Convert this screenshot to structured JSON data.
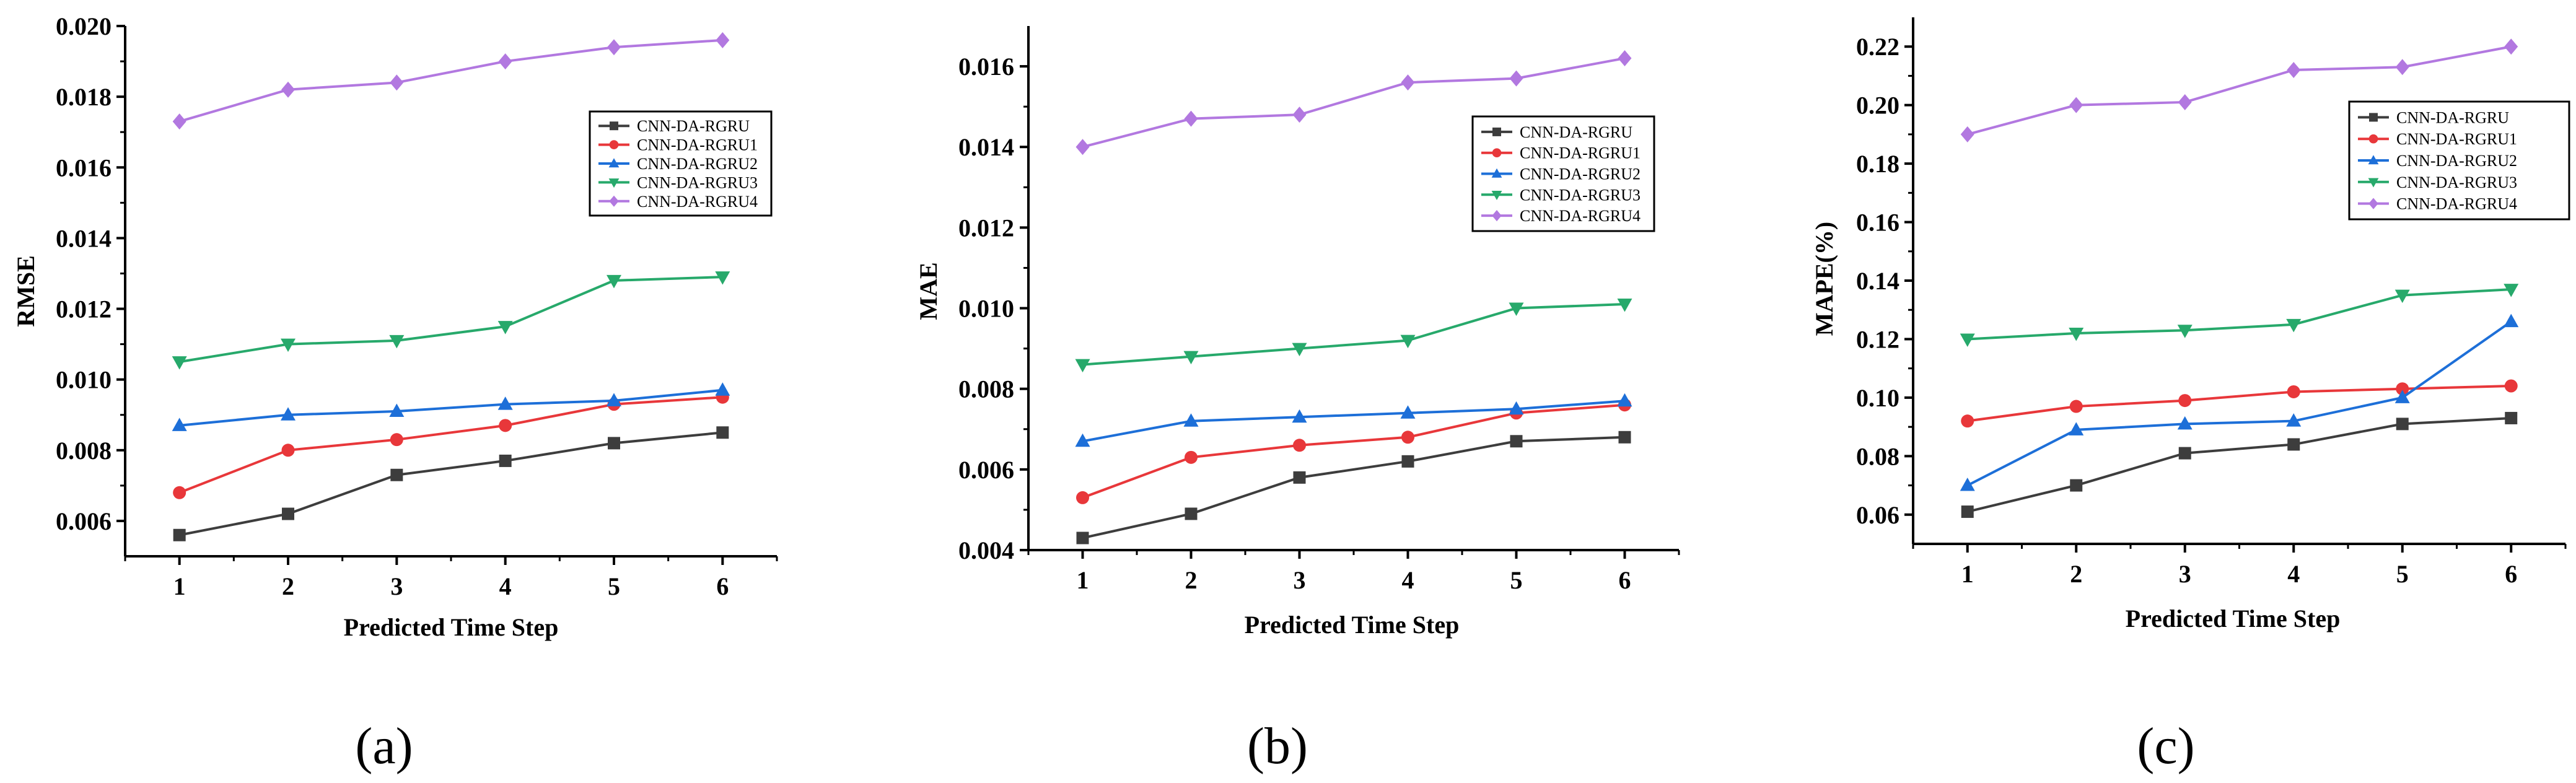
{
  "chart_data": [
    {
      "type": "line",
      "panel_label": "(a)",
      "xlabel": "Predicted Time Step",
      "ylabel": "RMSE",
      "x": [
        1,
        2,
        3,
        4,
        5,
        6
      ],
      "xlim": [
        0.5,
        6.5
      ],
      "ylim": [
        0.005,
        0.02
      ],
      "yticks": [
        0.006,
        0.008,
        0.01,
        0.012,
        0.014,
        0.016,
        0.018,
        0.02
      ],
      "ytick_labels": [
        "0.006",
        "0.008",
        "0.010",
        "0.012",
        "0.014",
        "0.016",
        "0.018",
        "0.020"
      ],
      "legend_position": "right-upper",
      "grid": false,
      "series": [
        {
          "name": "CNN-DA-RGRU",
          "color": "#3d3d3d",
          "marker": "square",
          "values": [
            0.0056,
            0.0062,
            0.0073,
            0.0077,
            0.0082,
            0.0085
          ]
        },
        {
          "name": "CNN-DA-RGRU1",
          "color": "#e8373a",
          "marker": "circle",
          "values": [
            0.0068,
            0.008,
            0.0083,
            0.0087,
            0.0093,
            0.0095
          ]
        },
        {
          "name": "CNN-DA-RGRU2",
          "color": "#1d6fd8",
          "marker": "triangle-up",
          "values": [
            0.0087,
            0.009,
            0.0091,
            0.0093,
            0.0094,
            0.0097
          ]
        },
        {
          "name": "CNN-DA-RGRU3",
          "color": "#27a96b",
          "marker": "triangle-down",
          "values": [
            0.0105,
            0.011,
            0.0111,
            0.0115,
            0.0128,
            0.0129
          ]
        },
        {
          "name": "CNN-DA-RGRU4",
          "color": "#b278e0",
          "marker": "diamond",
          "values": [
            0.0173,
            0.0182,
            0.0184,
            0.019,
            0.0194,
            0.0196
          ]
        }
      ]
    },
    {
      "type": "line",
      "panel_label": "(b)",
      "xlabel": "Predicted Time Step",
      "ylabel": "MAE",
      "x": [
        1,
        2,
        3,
        4,
        5,
        6
      ],
      "xlim": [
        0.5,
        6.5
      ],
      "ylim": [
        0.004,
        0.017
      ],
      "yticks": [
        0.004,
        0.006,
        0.008,
        0.01,
        0.012,
        0.014,
        0.016
      ],
      "ytick_labels": [
        "0.004",
        "0.006",
        "0.008",
        "0.010",
        "0.012",
        "0.014",
        "0.016"
      ],
      "legend_position": "right-upper",
      "grid": false,
      "series": [
        {
          "name": "CNN-DA-RGRU",
          "color": "#3d3d3d",
          "marker": "square",
          "values": [
            0.0043,
            0.0049,
            0.0058,
            0.0062,
            0.0067,
            0.0068
          ]
        },
        {
          "name": "CNN-DA-RGRU1",
          "color": "#e8373a",
          "marker": "circle",
          "values": [
            0.0053,
            0.0063,
            0.0066,
            0.0068,
            0.0074,
            0.0076
          ]
        },
        {
          "name": "CNN-DA-RGRU2",
          "color": "#1d6fd8",
          "marker": "triangle-up",
          "values": [
            0.0067,
            0.0072,
            0.0073,
            0.0074,
            0.0075,
            0.0077
          ]
        },
        {
          "name": "CNN-DA-RGRU3",
          "color": "#27a96b",
          "marker": "triangle-down",
          "values": [
            0.0086,
            0.0088,
            0.009,
            0.0092,
            0.01,
            0.0101
          ]
        },
        {
          "name": "CNN-DA-RGRU4",
          "color": "#b278e0",
          "marker": "diamond",
          "values": [
            0.014,
            0.0147,
            0.0148,
            0.0156,
            0.0157,
            0.0162
          ]
        }
      ]
    },
    {
      "type": "line",
      "panel_label": "(c)",
      "xlabel": "Predicted Time Step",
      "ylabel": "MAPE(%)",
      "x": [
        1,
        2,
        3,
        4,
        5,
        6
      ],
      "xlim": [
        0.5,
        6.5
      ],
      "ylim": [
        0.05,
        0.23
      ],
      "yticks": [
        0.06,
        0.08,
        0.1,
        0.12,
        0.14,
        0.16,
        0.18,
        0.2,
        0.22
      ],
      "ytick_labels": [
        "0.06",
        "0.08",
        "0.10",
        "0.12",
        "0.14",
        "0.16",
        "0.18",
        "0.20",
        "0.22"
      ],
      "legend_position": "right-upper",
      "grid": false,
      "series": [
        {
          "name": "CNN-DA-RGRU",
          "color": "#3d3d3d",
          "marker": "square",
          "values": [
            0.061,
            0.07,
            0.081,
            0.084,
            0.091,
            0.093
          ]
        },
        {
          "name": "CNN-DA-RGRU1",
          "color": "#e8373a",
          "marker": "circle",
          "values": [
            0.092,
            0.097,
            0.099,
            0.102,
            0.103,
            0.104
          ]
        },
        {
          "name": "CNN-DA-RGRU2",
          "color": "#1d6fd8",
          "marker": "triangle-up",
          "values": [
            0.07,
            0.089,
            0.091,
            0.092,
            0.1,
            0.126
          ]
        },
        {
          "name": "CNN-DA-RGRU3",
          "color": "#27a96b",
          "marker": "triangle-down",
          "values": [
            0.12,
            0.122,
            0.123,
            0.125,
            0.135,
            0.137
          ]
        },
        {
          "name": "CNN-DA-RGRU4",
          "color": "#b278e0",
          "marker": "diamond",
          "values": [
            0.19,
            0.2,
            0.201,
            0.212,
            0.213,
            0.22
          ]
        }
      ]
    }
  ]
}
